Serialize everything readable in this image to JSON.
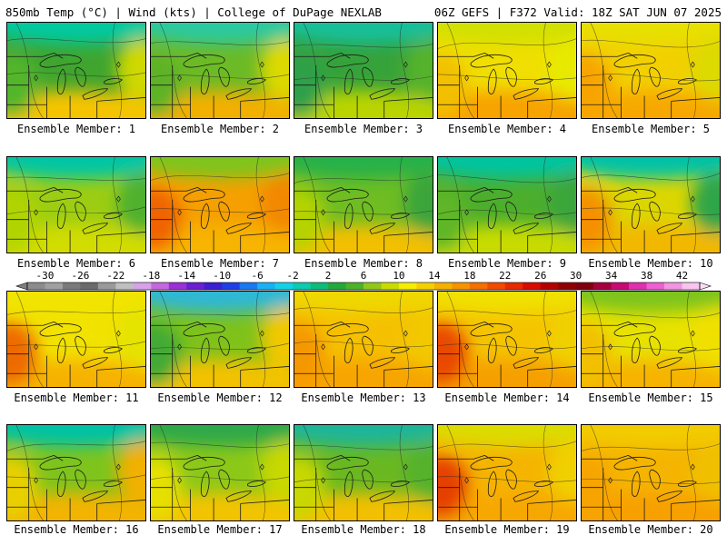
{
  "header": {
    "left": "850mb Temp (°C) | Wind (kts) | College of DuPage NEXLAB",
    "right": "06Z GEFS | F372 Valid: 18Z SAT JUN 07 2025"
  },
  "caption_prefix": "Ensemble Member: ",
  "members": [
    {
      "label": "Ensemble Member: 1",
      "base": "#3fa52f",
      "south": "#f5c400",
      "north": "#00c9a0",
      "west": "#53b62b",
      "east": "#cfd800"
    },
    {
      "label": "Ensemble Member: 2",
      "base": "#6cba25",
      "south": "#f2b000",
      "north": "#29c9a0",
      "west": "#5db228",
      "east": "#dcd900"
    },
    {
      "label": "Ensemble Member: 3",
      "base": "#36a23a",
      "south": "#b9d400",
      "north": "#14bf9a",
      "west": "#2fa04a",
      "east": "#55b22a"
    },
    {
      "label": "Ensemble Member: 4",
      "base": "#f0df00",
      "south": "#f7a300",
      "north": "#d2e000",
      "west": "#f2c000",
      "east": "#e7ea00"
    },
    {
      "label": "Ensemble Member: 5",
      "base": "#f2d000",
      "south": "#f7a800",
      "north": "#e7e000",
      "west": "#f8a400",
      "east": "#dcda00"
    },
    {
      "label": "Ensemble Member: 6",
      "base": "#9ccd12",
      "south": "#d2dc00",
      "north": "#00c6a5",
      "west": "#b0d400",
      "east": "#4fb12f"
    },
    {
      "label": "Ensemble Member: 7",
      "base": "#f5a000",
      "south": "#f7b400",
      "north": "#7fc41c",
      "west": "#f06400",
      "east": "#f28800"
    },
    {
      "label": "Ensemble Member: 8",
      "base": "#6fbd22",
      "south": "#f2c000",
      "north": "#27b14a",
      "west": "#b4d300",
      "east": "#3aa53a"
    },
    {
      "label": "Ensemble Member: 9",
      "base": "#4cae2c",
      "south": "#c8db00",
      "north": "#00c4a0",
      "west": "#5eb625",
      "east": "#3aa63a"
    },
    {
      "label": "Ensemble Member: 10",
      "base": "#dcd600",
      "south": "#f2b800",
      "north": "#00c2a7",
      "west": "#f59000",
      "east": "#2fa54a"
    },
    {
      "label": "Ensemble Member: 11",
      "base": "#f2e200",
      "south": "#f6b200",
      "north": "#f0e400",
      "west": "#ee6a00",
      "east": "#e5e300"
    },
    {
      "label": "Ensemble Member: 12",
      "base": "#7ec21a",
      "south": "#f2c200",
      "north": "#2fb8d6",
      "west": "#43aa35",
      "east": "#f0c800"
    },
    {
      "label": "Ensemble Member: 13",
      "base": "#f5c000",
      "south": "#f7a500",
      "north": "#efd800",
      "west": "#f59800",
      "east": "#f2c800"
    },
    {
      "label": "Ensemble Member: 14",
      "base": "#f5c400",
      "south": "#f5a000",
      "north": "#f0e100",
      "west": "#ea4a00",
      "east": "#f0d000"
    },
    {
      "label": "Ensemble Member: 15",
      "base": "#e8e200",
      "south": "#f6b400",
      "north": "#7ec41c",
      "west": "#f2c000",
      "east": "#f0e000"
    },
    {
      "label": "Ensemble Member: 16",
      "base": "#7ec41c",
      "south": "#f2b400",
      "north": "#00c2a5",
      "west": "#e8d000",
      "east": "#f2b000"
    },
    {
      "label": "Ensemble Member: 17",
      "base": "#8cc818",
      "south": "#f2c400",
      "north": "#2fa94a",
      "west": "#e6e000",
      "east": "#c8d800"
    },
    {
      "label": "Ensemble Member: 18",
      "base": "#6ab821",
      "south": "#f2c000",
      "north": "#1fb59a",
      "west": "#c8d800",
      "east": "#54b22a"
    },
    {
      "label": "Ensemble Member: 19",
      "base": "#f5b400",
      "south": "#f7a800",
      "north": "#dcdc00",
      "west": "#e64000",
      "east": "#f0d000"
    },
    {
      "label": "Ensemble Member: 20",
      "base": "#f5b400",
      "south": "#f7a000",
      "north": "#f2cc00",
      "west": "#f7a400",
      "east": "#f0c000"
    }
  ],
  "colorbar": {
    "labels": [
      "-30",
      "-26",
      "-22",
      "-18",
      "-14",
      "-10",
      "-6",
      "-2",
      "2",
      "6",
      "10",
      "14",
      "18",
      "22",
      "26",
      "30",
      "34",
      "38",
      "42"
    ],
    "colors": [
      "#8c8c8c",
      "#a0a0a0",
      "#7a7a7a",
      "#6a6a6a",
      "#9a9a9a",
      "#bfbfbf",
      "#d8a2e8",
      "#c467e0",
      "#9b2fd8",
      "#6a1fd0",
      "#3b1fd0",
      "#1f3fe6",
      "#1a78f0",
      "#19b0f5",
      "#13d2e6",
      "#0ccbb0",
      "#0bbd7a",
      "#23a93a",
      "#4cb22a",
      "#90c81a",
      "#c8dc00",
      "#f4ee00",
      "#f5d000",
      "#f5b000",
      "#f59400",
      "#f57000",
      "#f24a00",
      "#e82a00",
      "#d80c00",
      "#b40000",
      "#900000",
      "#80000e",
      "#a4003a",
      "#c80a74",
      "#e030b0",
      "#ee60d2",
      "#f294e2",
      "#f8c4f0"
    ]
  }
}
